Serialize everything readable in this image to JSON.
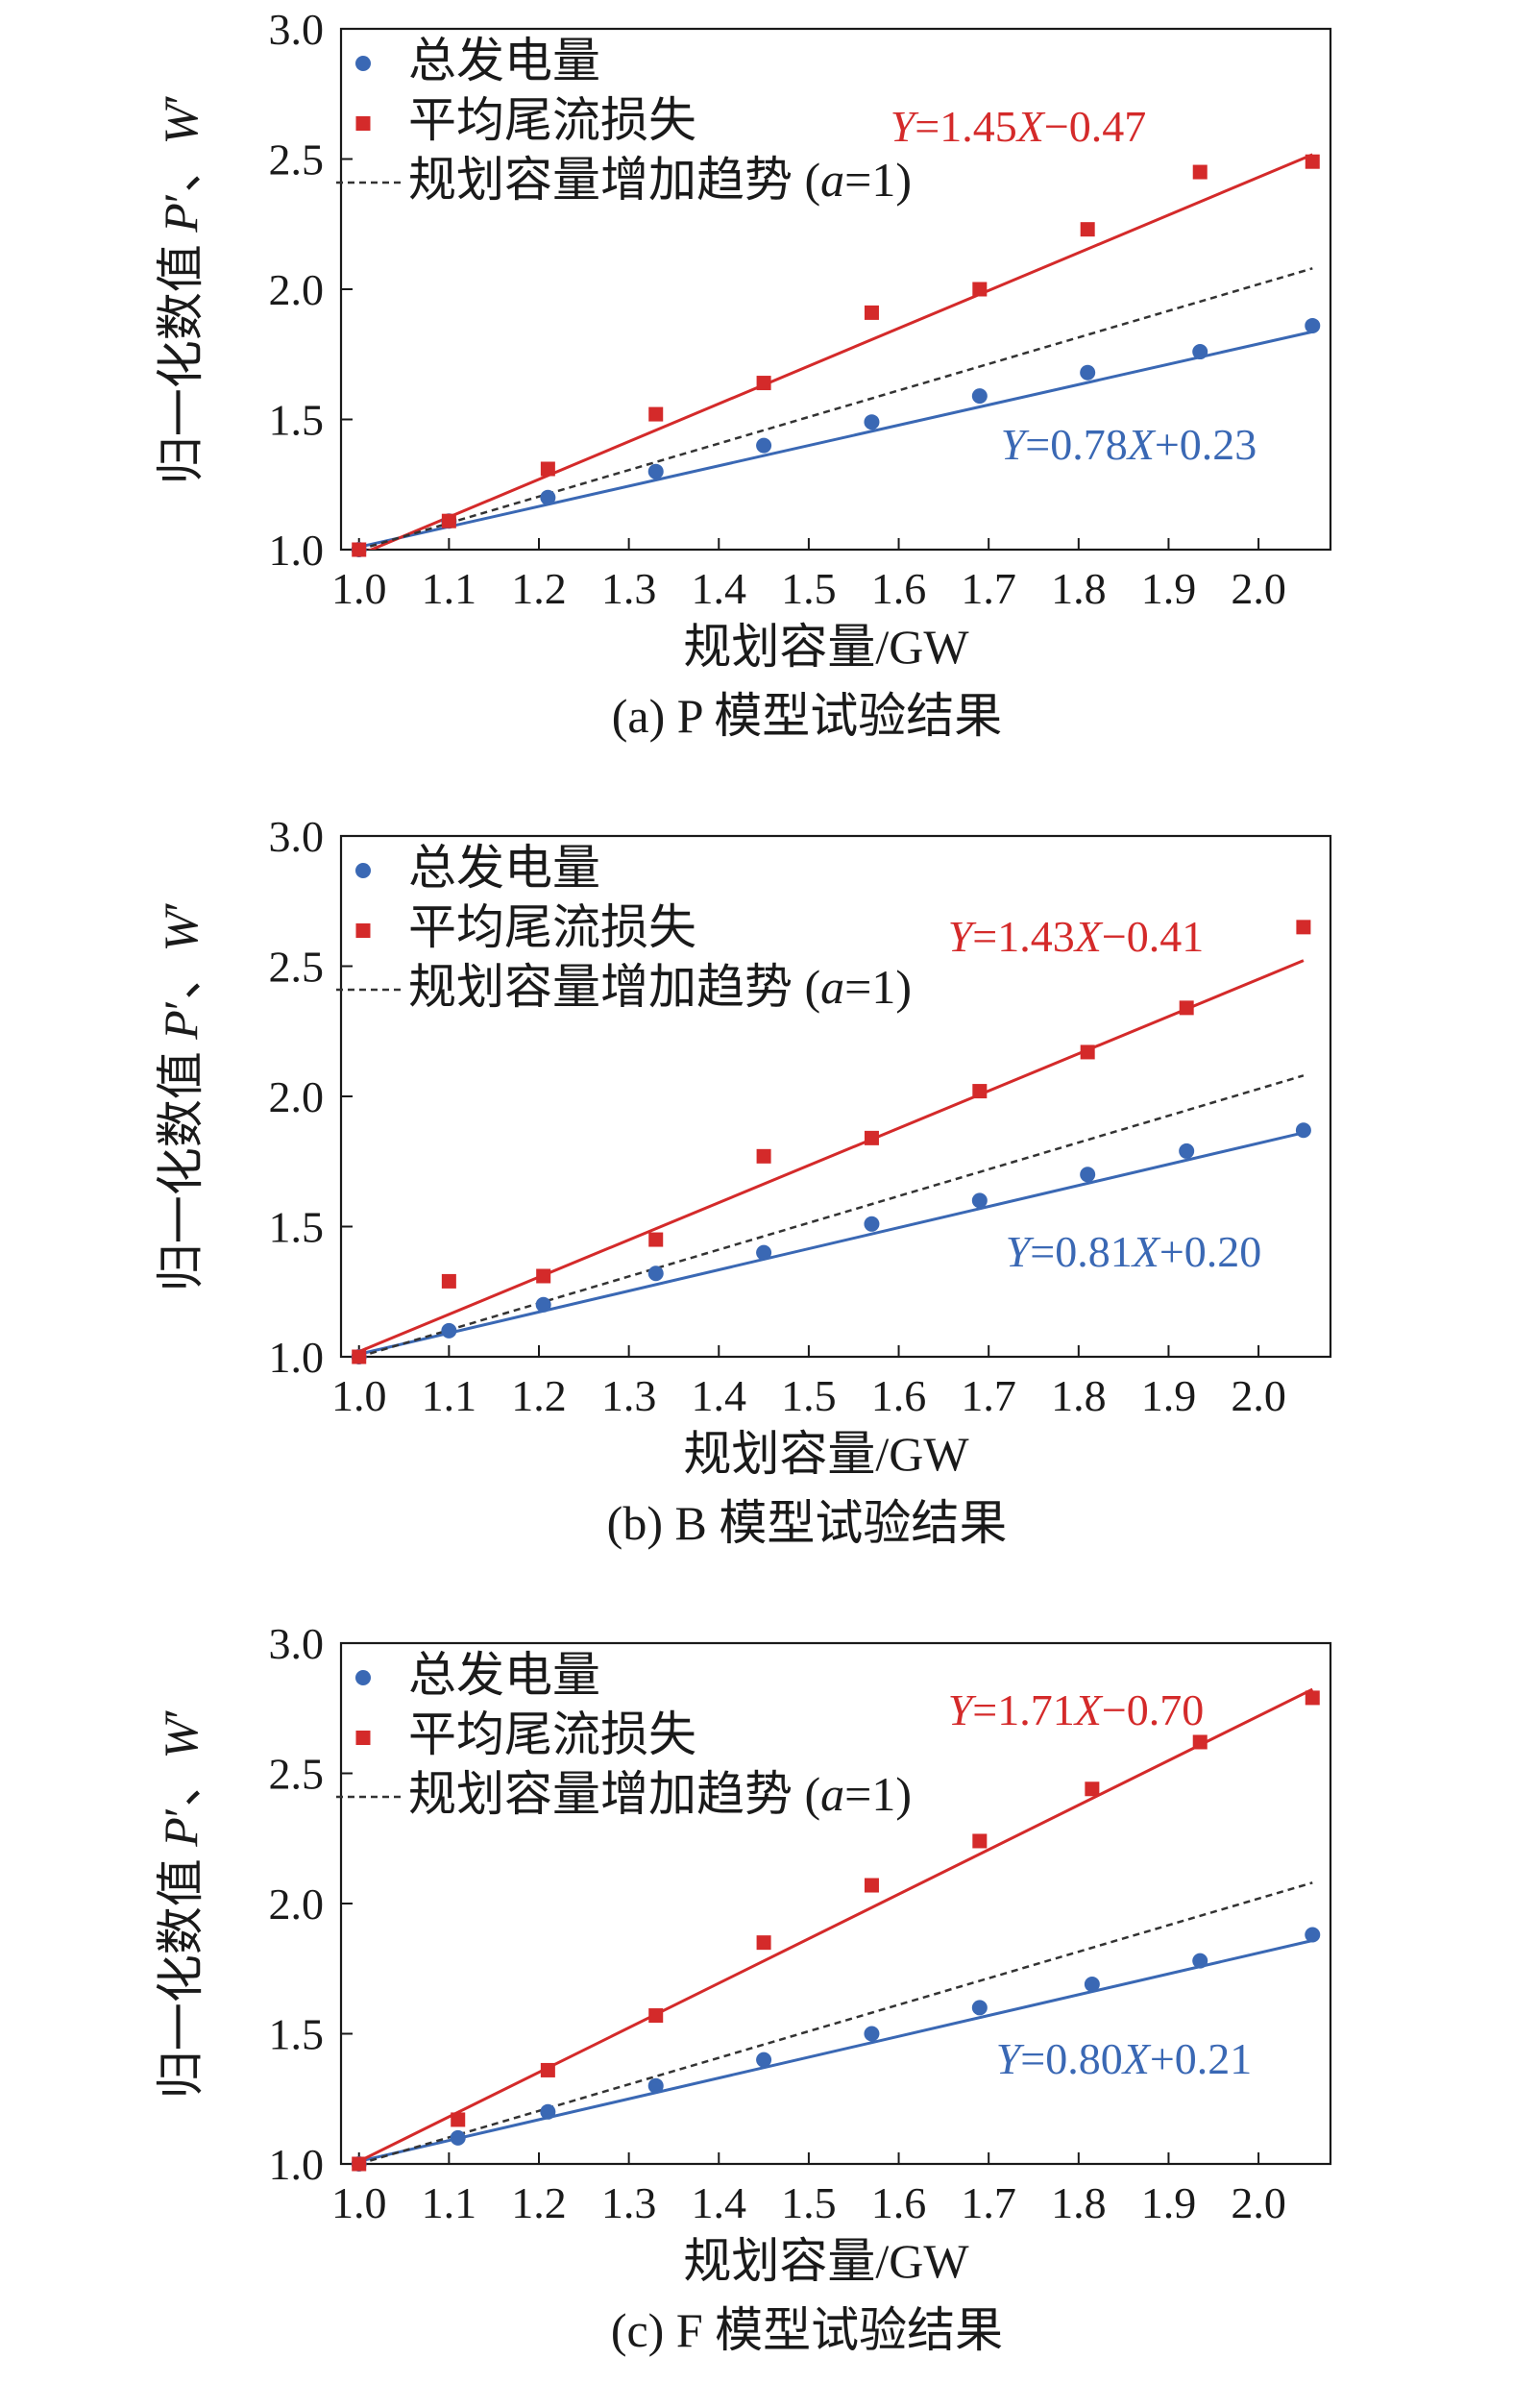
{
  "chart_data": [
    {
      "type": "scatter",
      "caption": "(a) P 模型试验结果",
      "xlabel": "规划容量/GW",
      "ylabel": "归一化数值 P′、W′",
      "xlim": [
        0.98,
        2.08
      ],
      "ylim": [
        1.0,
        3.0
      ],
      "xticks": [
        "1.0",
        "1.1",
        "1.2",
        "1.3",
        "1.4",
        "1.5",
        "1.6",
        "1.7",
        "1.8",
        "1.9",
        "2.0"
      ],
      "yticks": [
        "1.0",
        "1.5",
        "2.0",
        "2.5",
        "3.0"
      ],
      "grid": false,
      "legend_position": "top-left",
      "colors": {
        "power": "#3a68b4",
        "loss": "#d42a2a",
        "trend": "#333333"
      },
      "series": [
        {
          "name": "总发电量",
          "marker": "circle",
          "color": "#3a68b4",
          "x": [
            1.0,
            1.1,
            1.21,
            1.33,
            1.45,
            1.57,
            1.69,
            1.81,
            1.935,
            2.06
          ],
          "y": [
            1.0,
            1.11,
            1.2,
            1.3,
            1.4,
            1.49,
            1.59,
            1.68,
            1.76,
            1.86
          ],
          "fit": {
            "slope": 0.78,
            "intercept": 0.23,
            "label": "Y=0.78X+0.23"
          }
        },
        {
          "name": "平均尾流损失",
          "marker": "square",
          "color": "#d42a2a",
          "x": [
            1.0,
            1.1,
            1.21,
            1.33,
            1.45,
            1.57,
            1.69,
            1.81,
            1.935,
            2.06
          ],
          "y": [
            1.0,
            1.11,
            1.31,
            1.52,
            1.64,
            1.91,
            2.0,
            2.23,
            2.45,
            2.49
          ],
          "fit": {
            "slope": 1.45,
            "intercept": -0.47,
            "label": "Y=1.45X−0.47"
          }
        },
        {
          "name": "规划容量增加趋势 (a=1)",
          "type": "trend",
          "color": "#333333",
          "x": [
            1.0,
            2.06
          ],
          "y": [
            1.0,
            2.08
          ]
        }
      ]
    },
    {
      "type": "scatter",
      "caption": "(b) B 模型试验结果",
      "xlabel": "规划容量/GW",
      "ylabel": "归一化数值 P′、W′",
      "xlim": [
        0.98,
        2.08
      ],
      "ylim": [
        1.0,
        3.0
      ],
      "xticks": [
        "1.0",
        "1.1",
        "1.2",
        "1.3",
        "1.4",
        "1.5",
        "1.6",
        "1.7",
        "1.8",
        "1.9",
        "2.0"
      ],
      "yticks": [
        "1.0",
        "1.5",
        "2.0",
        "2.5",
        "3.0"
      ],
      "grid": false,
      "legend_position": "top-left",
      "colors": {
        "power": "#3a68b4",
        "loss": "#d42a2a",
        "trend": "#333333"
      },
      "series": [
        {
          "name": "总发电量",
          "marker": "circle",
          "color": "#3a68b4",
          "x": [
            1.0,
            1.1,
            1.205,
            1.33,
            1.45,
            1.57,
            1.69,
            1.81,
            1.92,
            2.05
          ],
          "y": [
            1.0,
            1.1,
            1.2,
            1.32,
            1.4,
            1.51,
            1.6,
            1.7,
            1.79,
            1.87
          ],
          "fit": {
            "slope": 0.81,
            "intercept": 0.2,
            "label": "Y=0.81X+0.20"
          }
        },
        {
          "name": "平均尾流损失",
          "marker": "square",
          "color": "#d42a2a",
          "x": [
            1.0,
            1.1,
            1.205,
            1.33,
            1.45,
            1.57,
            1.69,
            1.81,
            1.92,
            2.05
          ],
          "y": [
            1.0,
            1.29,
            1.31,
            1.45,
            1.77,
            1.84,
            2.02,
            2.17,
            2.34,
            2.65
          ],
          "fit": {
            "slope": 1.43,
            "intercept": -0.41,
            "label": "Y=1.43X−0.41"
          }
        },
        {
          "name": "规划容量增加趋势 (a=1)",
          "type": "trend",
          "color": "#333333",
          "x": [
            1.0,
            2.05
          ],
          "y": [
            1.0,
            2.08
          ]
        }
      ]
    },
    {
      "type": "scatter",
      "caption": "(c) F 模型试验结果",
      "xlabel": "规划容量/GW",
      "ylabel": "归一化数值 P′、W′",
      "xlim": [
        0.98,
        2.08
      ],
      "ylim": [
        1.0,
        3.0
      ],
      "xticks": [
        "1.0",
        "1.1",
        "1.2",
        "1.3",
        "1.4",
        "1.5",
        "1.6",
        "1.7",
        "1.8",
        "1.9",
        "2.0"
      ],
      "yticks": [
        "1.0",
        "1.5",
        "2.0",
        "2.5",
        "3.0"
      ],
      "grid": false,
      "legend_position": "top-left",
      "colors": {
        "power": "#3a68b4",
        "loss": "#d42a2a",
        "trend": "#333333"
      },
      "series": [
        {
          "name": "总发电量",
          "marker": "circle",
          "color": "#3a68b4",
          "x": [
            1.0,
            1.11,
            1.21,
            1.33,
            1.45,
            1.57,
            1.69,
            1.815,
            1.935,
            2.06
          ],
          "y": [
            1.0,
            1.1,
            1.2,
            1.3,
            1.4,
            1.5,
            1.6,
            1.69,
            1.78,
            1.88
          ],
          "fit": {
            "slope": 0.8,
            "intercept": 0.21,
            "label": "Y=0.80X+0.21"
          }
        },
        {
          "name": "平均尾流损失",
          "marker": "square",
          "color": "#d42a2a",
          "x": [
            1.0,
            1.11,
            1.21,
            1.33,
            1.45,
            1.57,
            1.69,
            1.815,
            1.935,
            2.06
          ],
          "y": [
            1.0,
            1.17,
            1.36,
            1.57,
            1.85,
            2.07,
            2.24,
            2.44,
            2.62,
            2.79
          ],
          "fit": {
            "slope": 1.71,
            "intercept": -0.7,
            "label": "Y=1.71X−0.70"
          }
        },
        {
          "name": "规划容量增加趋势 (a=1)",
          "type": "trend",
          "color": "#333333",
          "x": [
            1.0,
            2.06
          ],
          "y": [
            1.0,
            2.08
          ]
        }
      ]
    }
  ]
}
